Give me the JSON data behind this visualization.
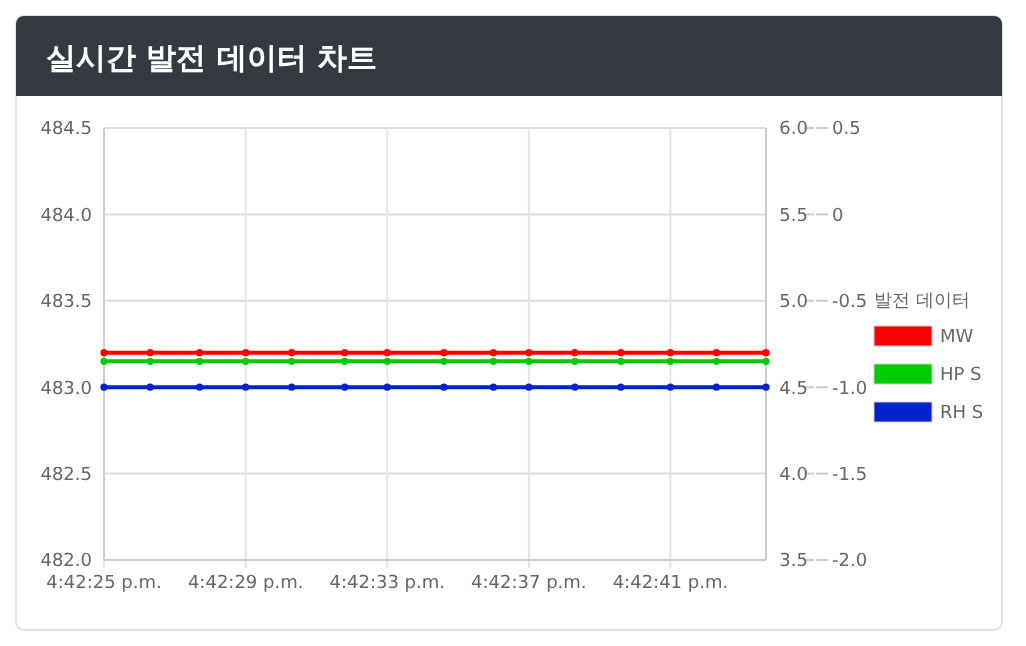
{
  "chart_data": {
    "type": "line",
    "title": "실시간 발전 데이터 차트",
    "legend_title": "발전 데이터",
    "legend": "right",
    "grid": true,
    "marker": "circle",
    "line_style": "solid",
    "x": [
      16.706944,
      16.707306,
      16.707694,
      16.708056,
      16.708417,
      16.708833,
      16.709167,
      16.709611,
      16.71,
      16.710278,
      16.710639,
      16.711,
      16.711389,
      16.71175,
      16.712139
    ],
    "xlim": [
      16.706944,
      16.712139
    ],
    "xticks": [
      {
        "value": 16.706944,
        "label": "4:42:25 p.m."
      },
      {
        "value": 16.708056,
        "label": "4:42:29 p.m."
      },
      {
        "value": 16.709167,
        "label": "4:42:33 p.m."
      },
      {
        "value": 16.710278,
        "label": "4:42:37 p.m."
      },
      {
        "value": 16.711389,
        "label": "4:42:41 p.m."
      }
    ],
    "ylim": [
      482,
      484.5
    ],
    "yticks": [
      {
        "value": 482,
        "label": "482.0"
      },
      {
        "value": 482.5,
        "label": "482.5"
      },
      {
        "value": 483,
        "label": "483.0"
      },
      {
        "value": 483.5,
        "label": "483.5"
      },
      {
        "value": 484,
        "label": "484.0"
      },
      {
        "value": 484.5,
        "label": "484.5"
      }
    ],
    "y2lim": [
      3.5,
      6
    ],
    "y2ticks": [
      3.5,
      {
        "value": 4,
        "label": "4.0"
      },
      4.5,
      {
        "value": 5,
        "label": "5.0"
      },
      5.5,
      {
        "value": 6,
        "label": "6.0"
      }
    ],
    "y3lim": [
      -2,
      0.5
    ],
    "y3ticks": [
      {
        "value": -2,
        "label": "-2.0"
      },
      -1.5,
      {
        "value": -1,
        "label": "-1.0"
      },
      -0.5,
      0,
      0.5
    ],
    "series": [
      {
        "name": "MW",
        "color": "#ff0000",
        "values": [
          483.2,
          483.2,
          483.2,
          483.2,
          483.2,
          483.2,
          483.2,
          483.2,
          483.2,
          483.2,
          483.2,
          483.2,
          483.2,
          483.2,
          483.2
        ]
      },
      {
        "name": "HP S",
        "color": "#00cc00",
        "axis": "y2",
        "values": [
          4.65,
          4.65,
          4.65,
          4.65,
          4.65,
          4.65,
          4.65,
          4.65,
          4.65,
          4.65,
          4.65,
          4.65,
          4.65,
          4.65,
          4.65
        ]
      },
      {
        "name": "RH S",
        "color": "#0022cc",
        "axis": "y3",
        "values": [
          -1,
          -1,
          -1,
          -1,
          -1,
          -1,
          -1,
          -1,
          -1,
          -1,
          -1,
          -1,
          -1,
          -1,
          -1
        ]
      }
    ]
  }
}
